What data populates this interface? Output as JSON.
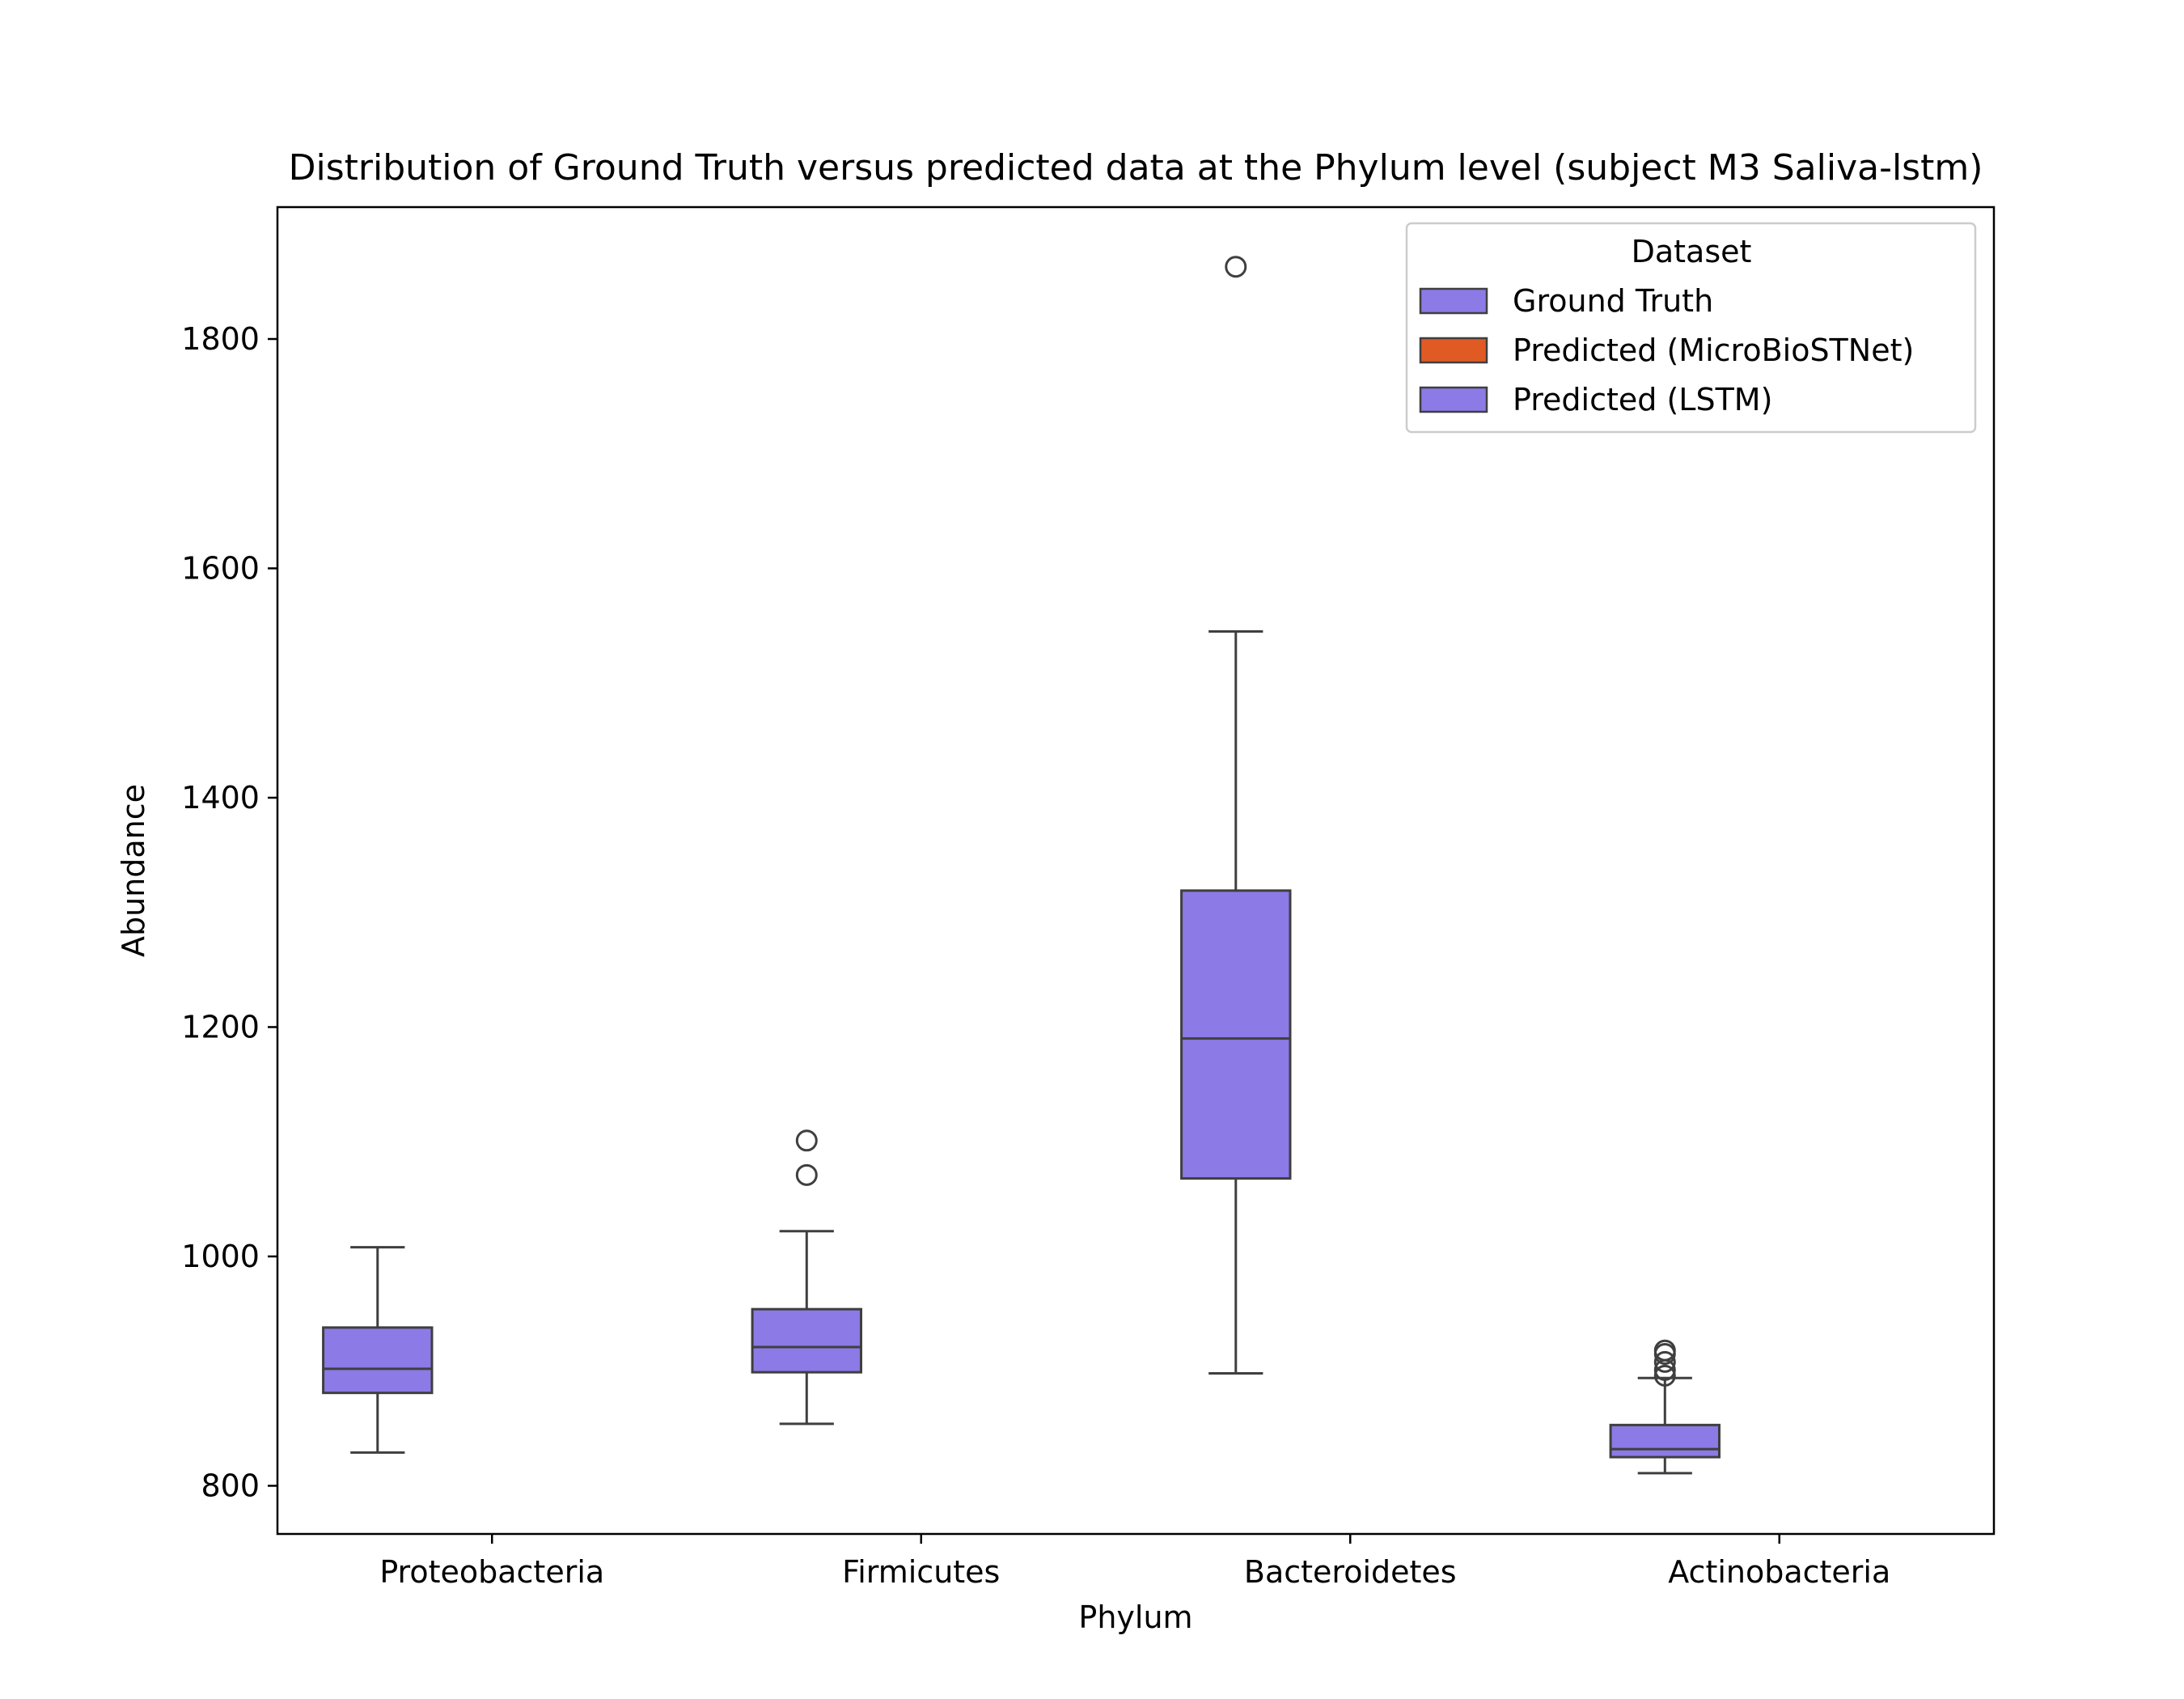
{
  "chart_data": {
    "type": "box",
    "title": "Distribution of Ground Truth versus predicted data at the Phylum level (subject M3 Saliva-lstm)",
    "xlabel": "Phylum",
    "ylabel": "Abundance",
    "ylim": [
      758,
      1915
    ],
    "yticks": [
      800,
      1000,
      1200,
      1400,
      1600,
      1800
    ],
    "grid": false,
    "categories": [
      "Proteobacteria",
      "Firmicutes",
      "Bacteroidetes",
      "Actinobacteria"
    ],
    "legend": {
      "title": "Dataset",
      "position": "top-right",
      "entries": [
        {
          "label": "Ground Truth",
          "color": "#8c7ae6"
        },
        {
          "label": "Predicted (MicroBioSTNet)",
          "color": "#e05a24"
        },
        {
          "label": "Predicted (LSTM)",
          "color": "#8c7ae6"
        }
      ]
    },
    "series": [
      {
        "name": "Ground Truth",
        "color": "#8c7ae6",
        "boxes": [
          {
            "category": "Proteobacteria",
            "whisker_low": 829,
            "q1": 881,
            "median": 902,
            "q3": 938,
            "whisker_high": 1008,
            "outliers": []
          },
          {
            "category": "Firmicutes",
            "whisker_low": 854,
            "q1": 899,
            "median": 921,
            "q3": 954,
            "whisker_high": 1022,
            "outliers": [
              1071,
              1101
            ]
          },
          {
            "category": "Bacteroidetes",
            "whisker_low": 898,
            "q1": 1068,
            "median": 1190,
            "q3": 1319,
            "whisker_high": 1545,
            "outliers": [
              1863
            ]
          },
          {
            "category": "Actinobacteria",
            "whisker_low": 811,
            "q1": 825,
            "median": 832,
            "q3": 853,
            "whisker_high": 894,
            "outliers": [
              896,
              901,
              908,
              915,
              918
            ]
          }
        ]
      }
    ]
  }
}
